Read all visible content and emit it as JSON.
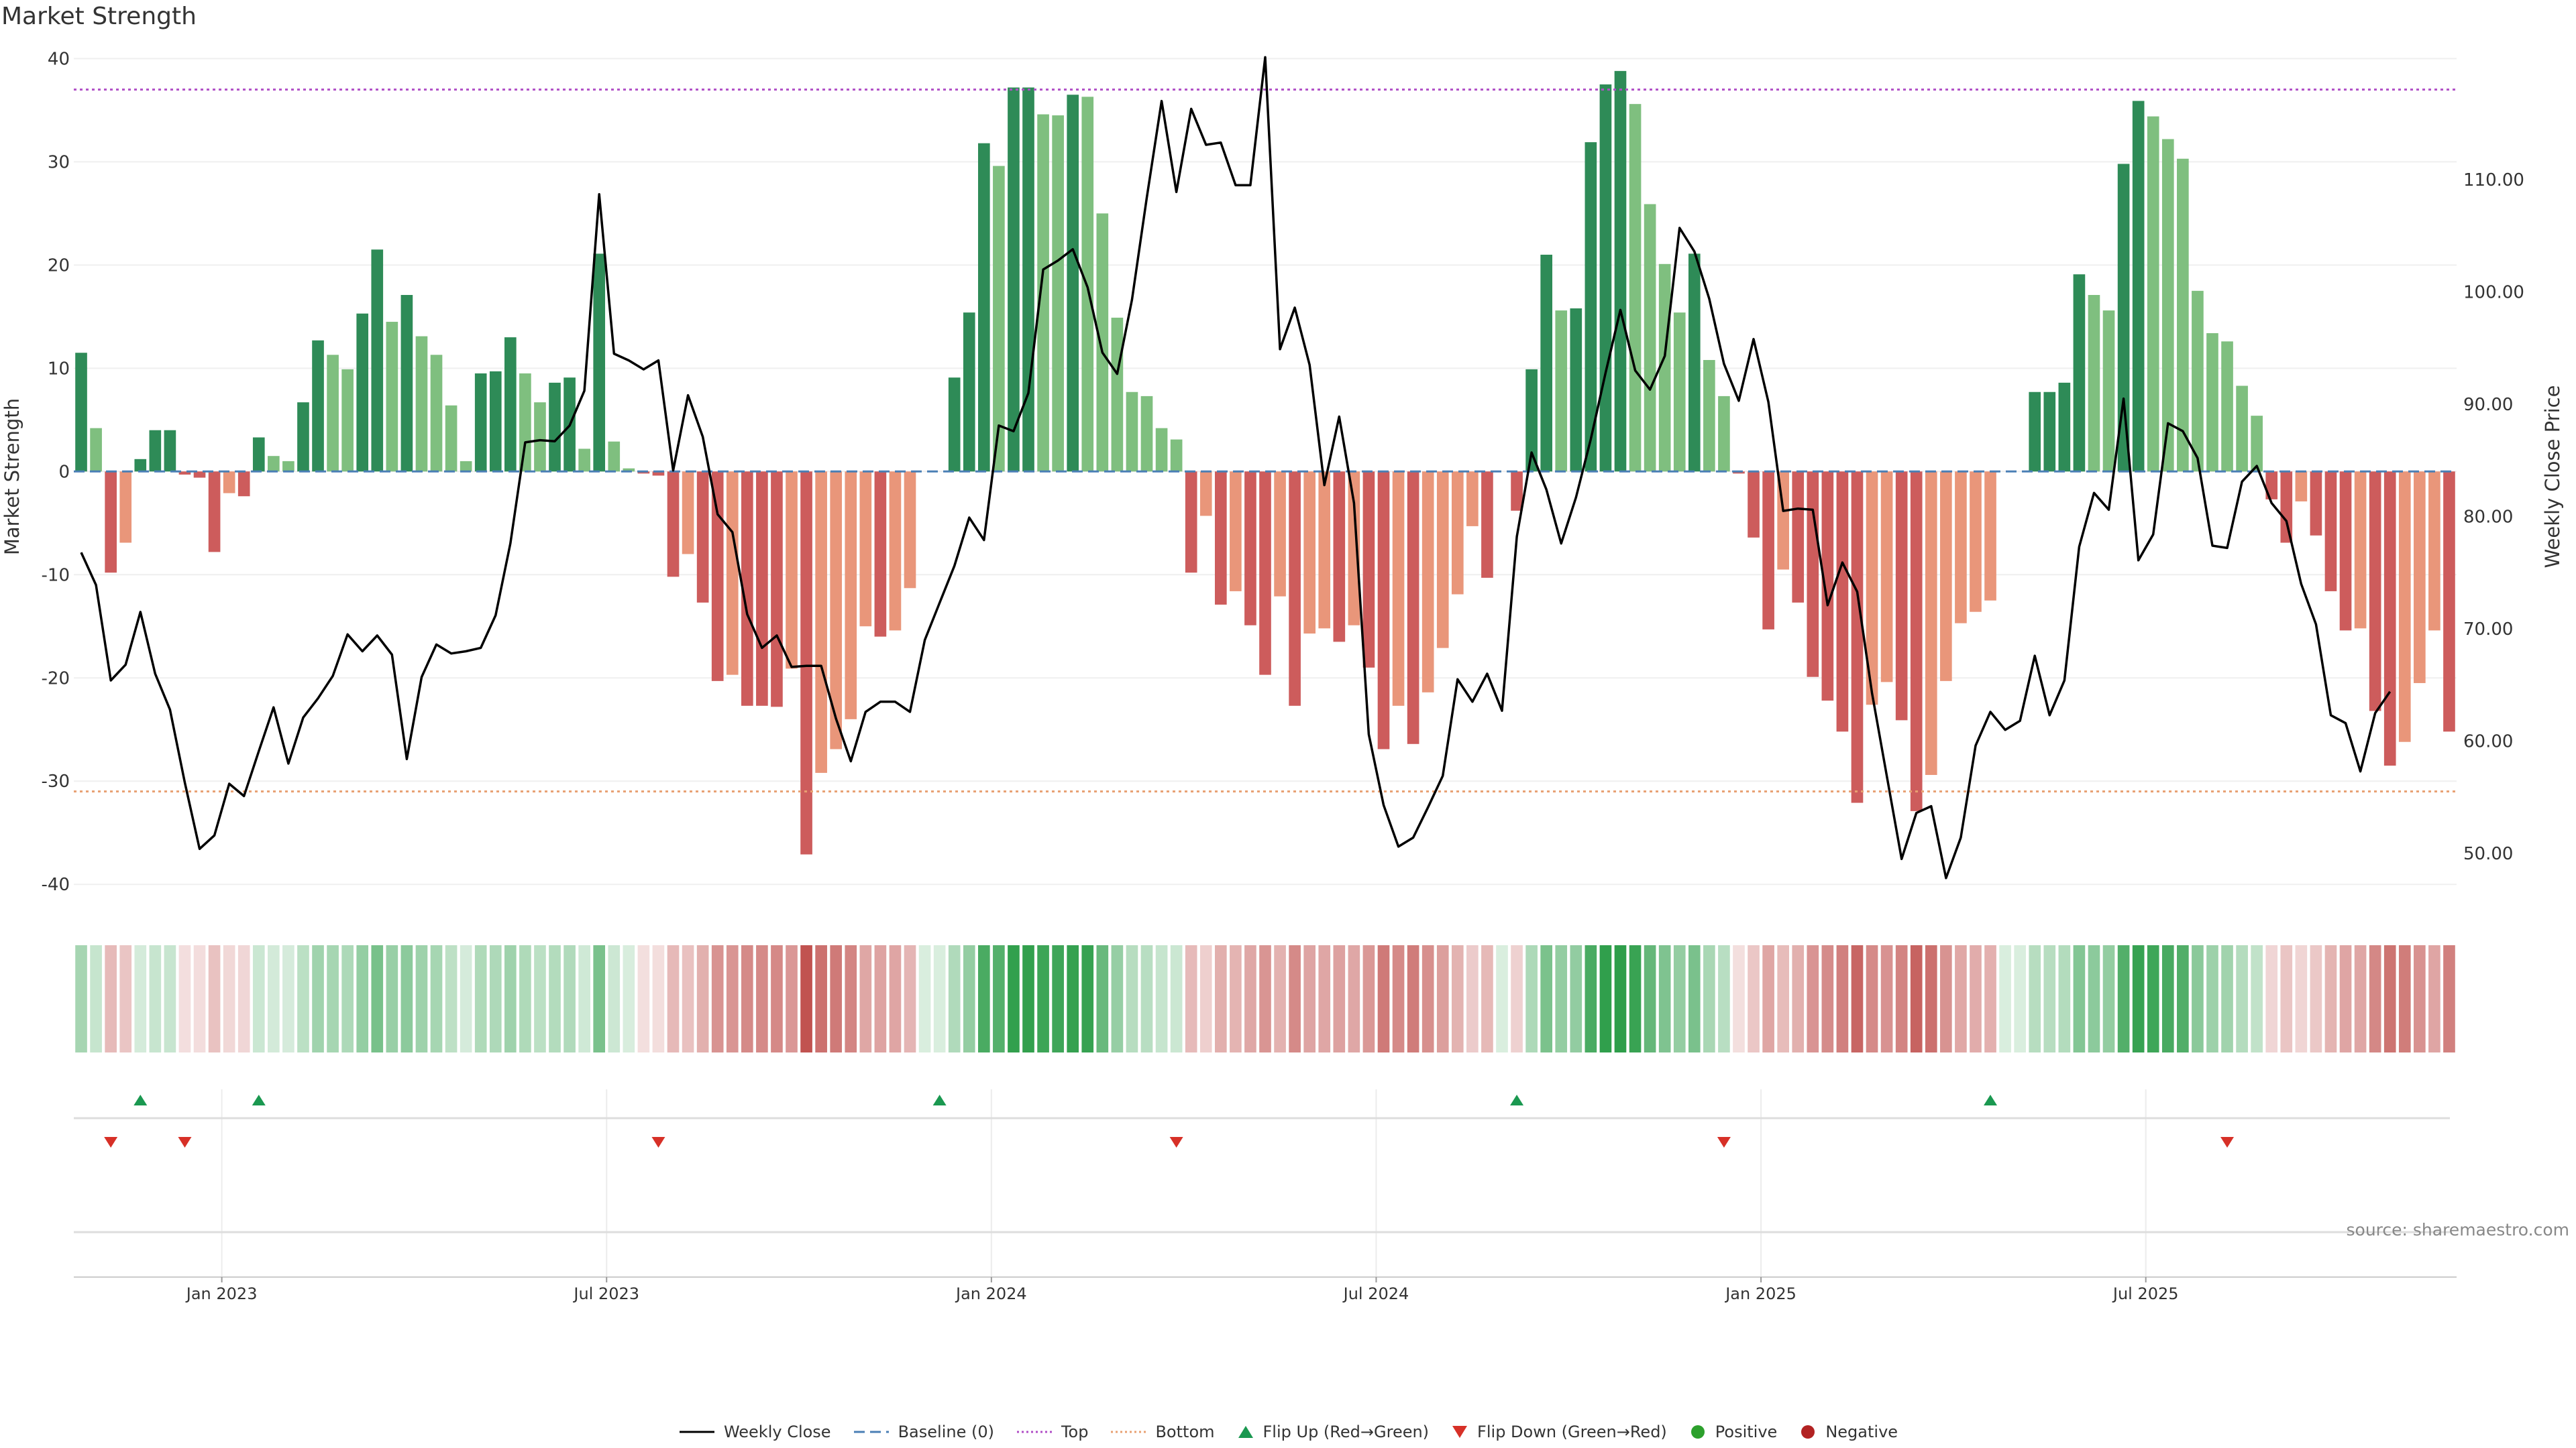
{
  "title": "Market Strength",
  "source": "source: sharemaestro.com",
  "chart_data": {
    "type": "bar",
    "title": "Market Strength",
    "ylabel_left": "Market Strength",
    "ylabel_right": "Weekly Close Price",
    "y_left_range": [
      -42,
      41
    ],
    "y_right_range": [
      45.4,
      121.7
    ],
    "y_left_ticks": [
      40,
      30,
      20,
      10,
      0,
      -10,
      -20,
      -30,
      -40
    ],
    "y_right_ticks": [
      "110.00",
      "100.00",
      "90.00",
      "80.00",
      "70.00",
      "60.00",
      "50.00"
    ],
    "top_line": 37,
    "bottom_line": -31,
    "x_tick_labels": [
      "Jan 2023",
      "Jul 2023",
      "Jan 2024",
      "Jul 2024",
      "Jan 2025",
      "Jul 2025"
    ],
    "x_tick_weeks": [
      10,
      36,
      62,
      88,
      114,
      140
    ],
    "strength": [
      11.5,
      4.2,
      -9.8,
      -6.9,
      1.2,
      4,
      4,
      -0.3,
      -0.6,
      -7.8,
      -2.1,
      -2.4,
      3.3,
      1.5,
      1,
      6.7,
      12.7,
      11.3,
      9.9,
      15.3,
      21.5,
      14.5,
      17.1,
      13.1,
      11.3,
      6.4,
      1,
      9.5,
      9.7,
      13,
      9.5,
      6.7,
      8.6,
      9.1,
      2.2,
      21.1,
      2.9,
      0.3,
      -0.2,
      -0.4,
      -10.2,
      -8,
      -12.7,
      -20.3,
      -19.7,
      -22.7,
      -22.7,
      -22.8,
      -19.1,
      -37.1,
      -29.2,
      -26.9,
      -24,
      -15,
      -16,
      -15.4,
      -11.3,
      0,
      0,
      9.1,
      15.4,
      31.8,
      29.6,
      37.2,
      37.2,
      34.6,
      34.5,
      36.5,
      36.3,
      25,
      14.9,
      7.7,
      7.3,
      4.2,
      3.1,
      -9.8,
      -4.3,
      -12.9,
      -11.6,
      -14.9,
      -19.7,
      -12.1,
      -22.7,
      -15.7,
      -15.2,
      -16.5,
      -14.9,
      -19,
      -26.9,
      -22.7,
      -26.4,
      -21.4,
      -17.1,
      -11.9,
      -5.3,
      -10.3,
      0,
      -3.8,
      9.9,
      21,
      15.6,
      15.8,
      31.9,
      37.5,
      38.8,
      35.6,
      25.9,
      20.1,
      15.4,
      21.1,
      10.8,
      7.3,
      -0.2,
      -6.4,
      -15.3,
      -9.5,
      -12.7,
      -19.9,
      -22.2,
      -25.2,
      -32.1,
      -22.6,
      -20.4,
      -24.1,
      -32.9,
      -29.4,
      -20.3,
      -14.7,
      -13.6,
      -12.5,
      0,
      0,
      7.7,
      7.7,
      8.6,
      19.1,
      17.1,
      15.6,
      29.8,
      35.9,
      34.4,
      32.2,
      30.3,
      17.5,
      13.4,
      12.6,
      8.3,
      5.4,
      -2.7,
      -6.9,
      -2.9,
      -6.2,
      -11.6,
      -15.4,
      -15.2,
      -23.2,
      -28.5,
      -26.2,
      -20.5,
      -15.4,
      -25.2
    ],
    "weekly_close": [
      76.8,
      73.9,
      65.4,
      66.8,
      71.5,
      66,
      62.8,
      56.3,
      50.4,
      51.6,
      56.2,
      55.1,
      59.1,
      63,
      58,
      62.1,
      63.8,
      65.8,
      69.5,
      68,
      69.4,
      67.7,
      58.4,
      65.7,
      68.6,
      67.8,
      68,
      68.3,
      71.2,
      77.6,
      86.6,
      86.8,
      86.7,
      88.1,
      91.2,
      108.7,
      94.5,
      93.9,
      93.1,
      93.9,
      84.1,
      90.8,
      87.1,
      80.2,
      78.6,
      71.3,
      68.3,
      69.4,
      66.6,
      66.7,
      66.7,
      62,
      58.2,
      62.6,
      63.5,
      63.5,
      62.6,
      69,
      72.3,
      75.6,
      79.9,
      77.9,
      88.1,
      87.6,
      91,
      102,
      102.8,
      103.8,
      100.4,
      94.6,
      92.7,
      99.3,
      108.4,
      117,
      108.9,
      116.3,
      113.1,
      113.3,
      109.5,
      109.5,
      120.9,
      94.9,
      98.6,
      93.5,
      82.8,
      88.9,
      81.2,
      60.6,
      54.3,
      50.6,
      51.4,
      54.1,
      56.9,
      65.5,
      63.5,
      66,
      62.7,
      78.2,
      85.7,
      82.4,
      77.6,
      81.7,
      86.9,
      92.8,
      98.4,
      93,
      91.3,
      94.3,
      105.7,
      103.6,
      99.4,
      93.6,
      90.3,
      95.8,
      90.2,
      80.5,
      80.7,
      80.6,
      72.1,
      75.9,
      73.3,
      64.3,
      56.9,
      49.5,
      53.6,
      54.2,
      47.8,
      51.4,
      59.6,
      62.6,
      61,
      61.8,
      67.6,
      62.3,
      65.4,
      77.3,
      82.1,
      80.6,
      90.5,
      76.1,
      78.4,
      88.3,
      87.6,
      85.2,
      77.4,
      77.2,
      83.1,
      84.5,
      81.2,
      79.6,
      74,
      70.4,
      62.3,
      61.6,
      57.3,
      62.5,
      64.4
    ],
    "flip_up_weeks": [
      4,
      12,
      58,
      97,
      129
    ],
    "flip_down_weeks": [
      2,
      7,
      39,
      74,
      111,
      145
    ],
    "legend": [
      {
        "label": "Weekly Close",
        "marker": "line"
      },
      {
        "label": "Baseline (0)",
        "marker": "dash"
      },
      {
        "label": "Top",
        "marker": "dotted"
      },
      {
        "label": "Bottom",
        "marker": "dotted-orange"
      },
      {
        "label": "Flip Up (Red→Green)",
        "marker": "triangle-up"
      },
      {
        "label": "Flip Down (Green→Red)",
        "marker": "triangle-down"
      },
      {
        "label": "Positive",
        "marker": "circle-green"
      },
      {
        "label": "Negative",
        "marker": "circle-red"
      }
    ]
  },
  "colors": {
    "strong_green": "#2e8b57",
    "light_green": "#7fbf7f",
    "strong_red": "#cd5c5c",
    "light_red": "#e9967a",
    "close_line": "#000000",
    "baseline": "#4a7fb5",
    "top": "#b04fc6",
    "bottom": "#e8a072",
    "flip_up": "#1a9850",
    "flip_down": "#d73027",
    "positive": "#2ca02c",
    "negative": "#b22222"
  }
}
